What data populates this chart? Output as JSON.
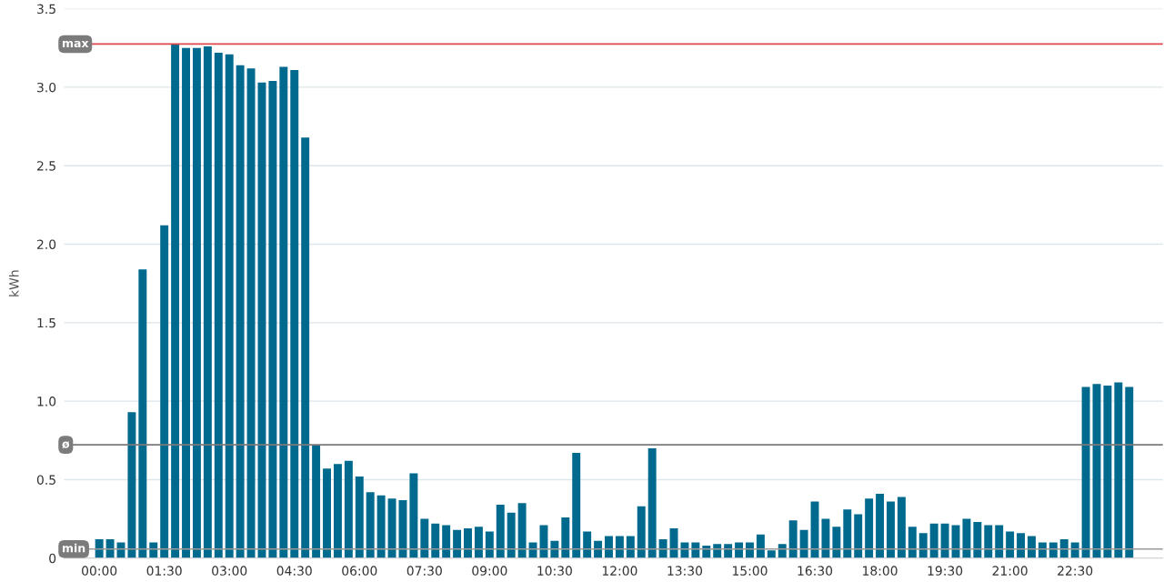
{
  "chart_data": {
    "type": "bar",
    "ylabel": "kWh",
    "categories": [
      "00:00",
      null,
      null,
      null,
      null,
      null,
      "01:30",
      null,
      null,
      null,
      null,
      null,
      "03:00",
      null,
      null,
      null,
      null,
      null,
      "04:30",
      null,
      null,
      null,
      null,
      null,
      "06:00",
      null,
      null,
      null,
      null,
      null,
      "07:30",
      null,
      null,
      null,
      null,
      null,
      "09:00",
      null,
      null,
      null,
      null,
      null,
      "10:30",
      null,
      null,
      null,
      null,
      null,
      "12:00",
      null,
      null,
      null,
      null,
      null,
      "13:30",
      null,
      null,
      null,
      null,
      null,
      "15:00",
      null,
      null,
      null,
      null,
      null,
      "16:30",
      null,
      null,
      null,
      null,
      null,
      "18:00",
      null,
      null,
      null,
      null,
      null,
      "19:30",
      null,
      null,
      null,
      null,
      null,
      "21:00",
      null,
      null,
      null,
      null,
      null,
      "22:30",
      null,
      null,
      null,
      null,
      null
    ],
    "values": [
      0.12,
      0.12,
      0.1,
      0.93,
      1.84,
      0.1,
      2.12,
      3.275,
      3.25,
      3.25,
      3.26,
      3.22,
      3.21,
      3.14,
      3.12,
      3.03,
      3.04,
      3.13,
      3.11,
      2.68,
      0.72,
      0.57,
      0.6,
      0.62,
      0.52,
      0.42,
      0.4,
      0.38,
      0.37,
      0.54,
      0.25,
      0.22,
      0.21,
      0.18,
      0.19,
      0.2,
      0.17,
      0.34,
      0.29,
      0.35,
      0.1,
      0.21,
      0.11,
      0.26,
      0.67,
      0.17,
      0.11,
      0.14,
      0.14,
      0.14,
      0.33,
      0.7,
      0.12,
      0.19,
      0.1,
      0.1,
      0.08,
      0.09,
      0.09,
      0.1,
      0.1,
      0.15,
      0.05,
      0.09,
      0.24,
      0.18,
      0.36,
      0.25,
      0.2,
      0.31,
      0.28,
      0.38,
      0.41,
      0.36,
      0.39,
      0.2,
      0.16,
      0.22,
      0.22,
      0.21,
      0.25,
      0.23,
      0.21,
      0.21,
      0.17,
      0.16,
      0.14,
      0.1,
      0.1,
      0.12,
      0.1,
      1.09,
      1.11,
      1.1,
      1.12,
      1.09
    ],
    "color": "#006a8e",
    "ylim": [
      0,
      3.5
    ],
    "yticks": [
      0,
      0.5,
      {
        "value": 1,
        "label": "1.0"
      },
      1.5,
      {
        "value": 2,
        "label": "2.0"
      },
      2.5,
      {
        "value": 3,
        "label": "3.0"
      },
      3.5
    ],
    "grid": "y",
    "ref_lines": [
      {
        "axis": "y",
        "value": 3.275,
        "label": "max",
        "color": "#e0474c"
      },
      {
        "axis": "y",
        "value": 0.722,
        "label": "ø",
        "color": "#7a7a7a"
      },
      {
        "axis": "y",
        "value": 0.058,
        "label": "min",
        "color": "#9a9a9a"
      }
    ]
  }
}
